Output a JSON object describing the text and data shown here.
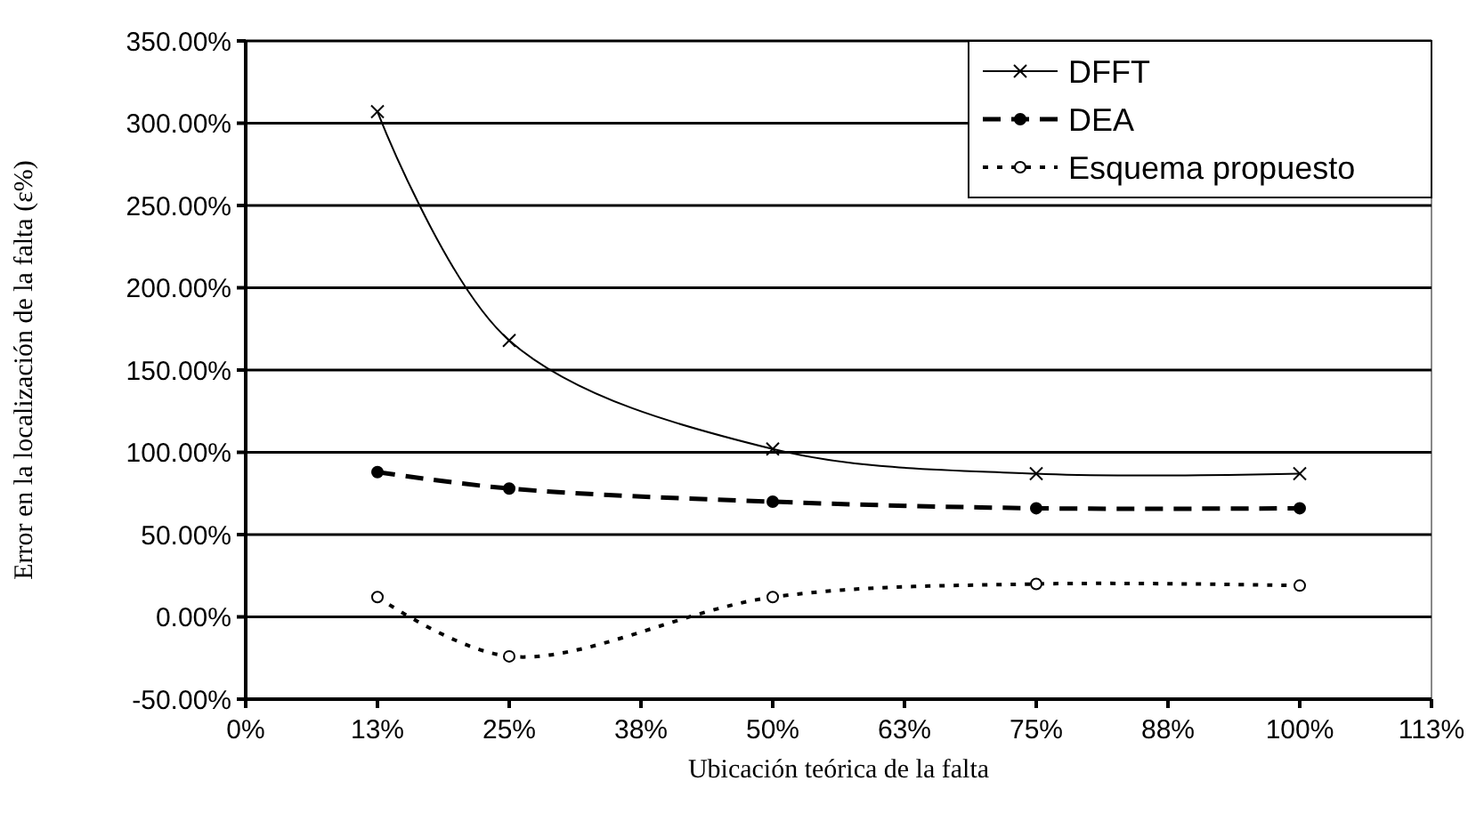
{
  "chart_data": {
    "type": "line",
    "xlabel": "Ubicación teórica de la falta",
    "ylabel": "Error en la localización de la falta (ε%)",
    "xlim": [
      0,
      112.5
    ],
    "xticks": [
      {
        "value": 0,
        "label": "0%"
      },
      {
        "value": 12.5,
        "label": "13%"
      },
      {
        "value": 25,
        "label": "25%"
      },
      {
        "value": 37.5,
        "label": "38%"
      },
      {
        "value": 50,
        "label": "50%"
      },
      {
        "value": 62.5,
        "label": "63%"
      },
      {
        "value": 75,
        "label": "75%"
      },
      {
        "value": 87.5,
        "label": "88%"
      },
      {
        "value": 100,
        "label": "100%"
      },
      {
        "value": 112.5,
        "label": "113%"
      }
    ],
    "ylim": [
      -50,
      350
    ],
    "yticks": [
      {
        "value": -50,
        "label": "-50.00%"
      },
      {
        "value": 0,
        "label": "0.00%"
      },
      {
        "value": 50,
        "label": "50.00%"
      },
      {
        "value": 100,
        "label": "100.00%"
      },
      {
        "value": 150,
        "label": "150.00%"
      },
      {
        "value": 200,
        "label": "200.00%"
      },
      {
        "value": 250,
        "label": "250.00%"
      },
      {
        "value": 300,
        "label": "300.00%"
      },
      {
        "value": 350,
        "label": "350.00%"
      }
    ],
    "x": [
      12.5,
      25,
      50,
      75,
      100
    ],
    "grid": "y",
    "legend": "top right",
    "series": [
      {
        "name": "DFFT",
        "color": "#000000",
        "values": [
          307,
          168,
          102,
          87,
          87
        ],
        "marker": "cross",
        "line_style": "solid"
      },
      {
        "name": "DEA",
        "color": "#000000",
        "values": [
          88,
          78,
          70,
          66,
          66
        ],
        "marker": "circle",
        "line_style": "dashed"
      },
      {
        "name": "Esquema propuesto",
        "color": "#000000",
        "values": [
          12,
          -24,
          12,
          20,
          19
        ],
        "marker": "circle",
        "line_style": "dotted"
      }
    ]
  }
}
